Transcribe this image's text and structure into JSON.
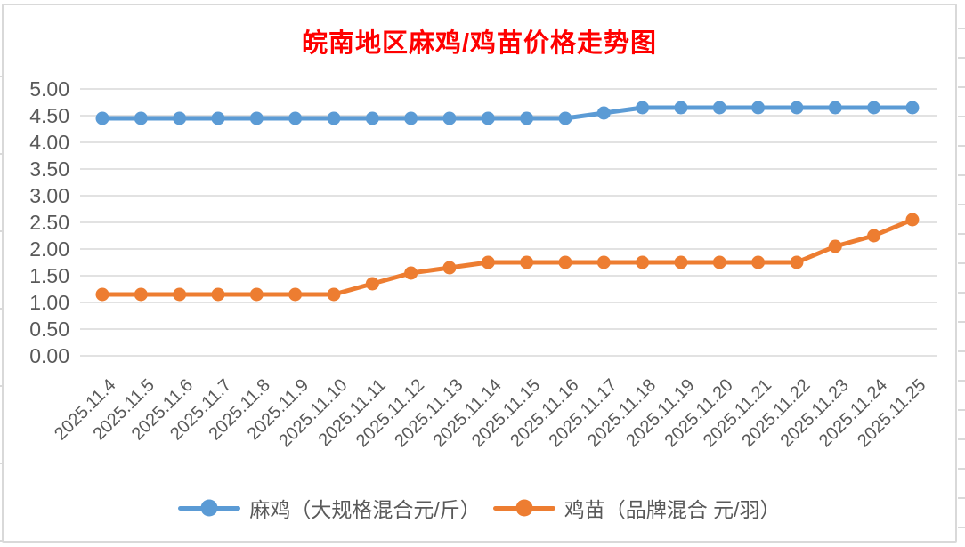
{
  "chart_data": {
    "type": "line",
    "title": "皖南地区麻鸡/鸡苗价格走势图",
    "title_color": "#ff0000",
    "categories": [
      "2025.11.4",
      "2025.11.5",
      "2025.11.6",
      "2025.11.7",
      "2025.11.8",
      "2025.11.9",
      "2025.11.10",
      "2025.11.11",
      "2025.11.12",
      "2025.11.13",
      "2025.11.14",
      "2025.11.15",
      "2025.11.16",
      "2025.11.17",
      "2025.11.18",
      "2025.11.19",
      "2025.11.20",
      "2025.11.21",
      "2025.11.22",
      "2025.11.23",
      "2025.11.24",
      "2025.11.25"
    ],
    "series": [
      {
        "name": "麻鸡（大规格混合元/斤）",
        "color": "#5b9bd5",
        "values": [
          4.45,
          4.45,
          4.45,
          4.45,
          4.45,
          4.45,
          4.45,
          4.45,
          4.45,
          4.45,
          4.45,
          4.45,
          4.45,
          4.55,
          4.65,
          4.65,
          4.65,
          4.65,
          4.65,
          4.65,
          4.65,
          4.65
        ]
      },
      {
        "name": "鸡苗（品牌混合 元/羽）",
        "color": "#ed7d31",
        "values": [
          1.15,
          1.15,
          1.15,
          1.15,
          1.15,
          1.15,
          1.15,
          1.35,
          1.55,
          1.65,
          1.75,
          1.75,
          1.75,
          1.75,
          1.75,
          1.75,
          1.75,
          1.75,
          1.75,
          2.05,
          2.25,
          2.55
        ]
      }
    ],
    "ylim": [
      0,
      5
    ],
    "ytick_step": 0.5,
    "ytick_labels": [
      "5.00",
      "4.50",
      "4.00",
      "3.50",
      "3.00",
      "2.50",
      "2.00",
      "1.50",
      "1.00",
      "0.50",
      "0.00"
    ],
    "xtick_rotation_deg": 45,
    "grid": "horizontal",
    "gridline_color": "#d9d9d9",
    "axis_label_color": "#595959",
    "legend_position": "bottom"
  }
}
